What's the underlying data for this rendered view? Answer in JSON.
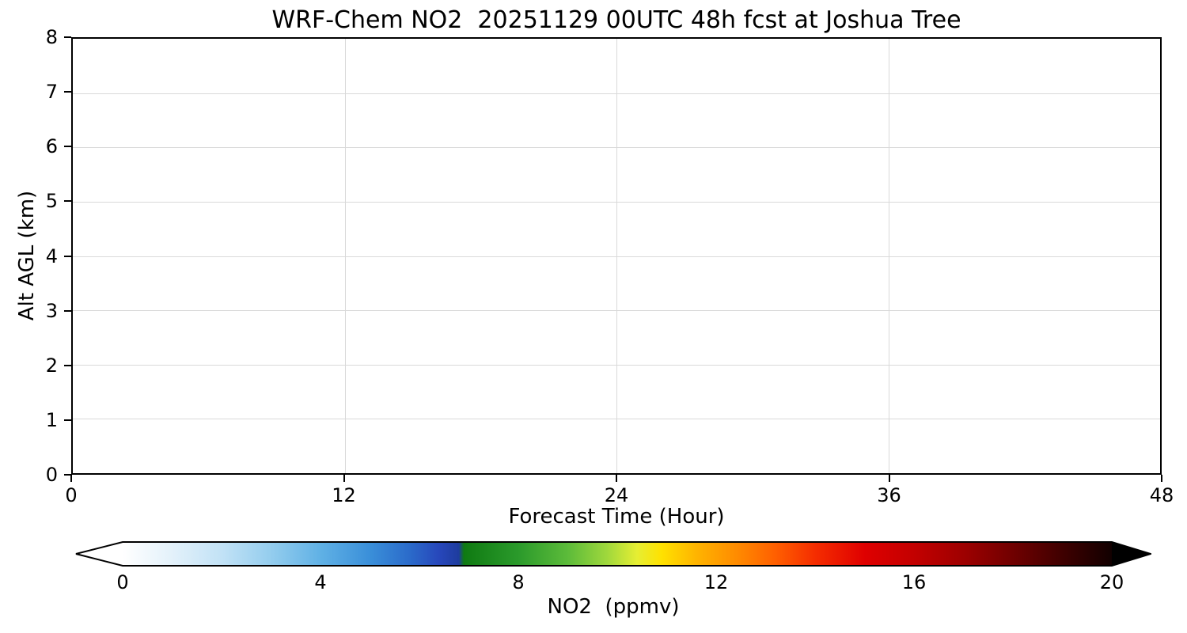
{
  "figure": {
    "background": "#ffffff",
    "text_color": "#000000",
    "axis_color": "#000000"
  },
  "chart_data": {
    "type": "heatmap",
    "title": "WRF-Chem NO2  20251129 00UTC 48h fcst at Joshua Tree",
    "xlabel": "Forecast Time (Hour)",
    "ylabel": "Alt AGL (km)",
    "xlim": [
      0,
      48
    ],
    "ylim": [
      0,
      8
    ],
    "x_ticks": [
      "0",
      "12",
      "24",
      "36",
      "48"
    ],
    "y_ticks": [
      "0",
      "1",
      "2",
      "3",
      "4",
      "5",
      "6",
      "7",
      "8"
    ],
    "grid": true,
    "grid_color": "#d9d9d9",
    "values": [],
    "colorbar": {
      "label": "NO2  (ppmv)",
      "ticks": [
        "0",
        "4",
        "8",
        "12",
        "16",
        "20"
      ],
      "vmin": 0,
      "vmax": 20,
      "extend": "both",
      "under_color": "#ffffff",
      "over_color": "#000000",
      "stops": [
        {
          "v": 0,
          "color": "#ffffff"
        },
        {
          "v": 1,
          "color": "#e3f1fa"
        },
        {
          "v": 2,
          "color": "#c2e2f6"
        },
        {
          "v": 3,
          "color": "#94cdee"
        },
        {
          "v": 4,
          "color": "#60b1e5"
        },
        {
          "v": 5,
          "color": "#3a8fd9"
        },
        {
          "v": 5.8,
          "color": "#2b6bca"
        },
        {
          "v": 6.4,
          "color": "#2747bb"
        },
        {
          "v": 6.8,
          "color": "#1e3c9e"
        },
        {
          "v": 6.9,
          "color": "#0f7a12"
        },
        {
          "v": 8,
          "color": "#2b9a2b"
        },
        {
          "v": 9,
          "color": "#5cbb3a"
        },
        {
          "v": 9.8,
          "color": "#a0d83c"
        },
        {
          "v": 10.4,
          "color": "#e6ee33"
        },
        {
          "v": 10.9,
          "color": "#ffe100"
        },
        {
          "v": 11.6,
          "color": "#ffb400"
        },
        {
          "v": 12.4,
          "color": "#ff8c00"
        },
        {
          "v": 13.2,
          "color": "#ff5f00"
        },
        {
          "v": 14,
          "color": "#f52d00"
        },
        {
          "v": 15,
          "color": "#df0000"
        },
        {
          "v": 16,
          "color": "#c30000"
        },
        {
          "v": 17,
          "color": "#9e0000"
        },
        {
          "v": 18,
          "color": "#700000"
        },
        {
          "v": 19,
          "color": "#3f0000"
        },
        {
          "v": 20,
          "color": "#120000"
        }
      ]
    }
  }
}
